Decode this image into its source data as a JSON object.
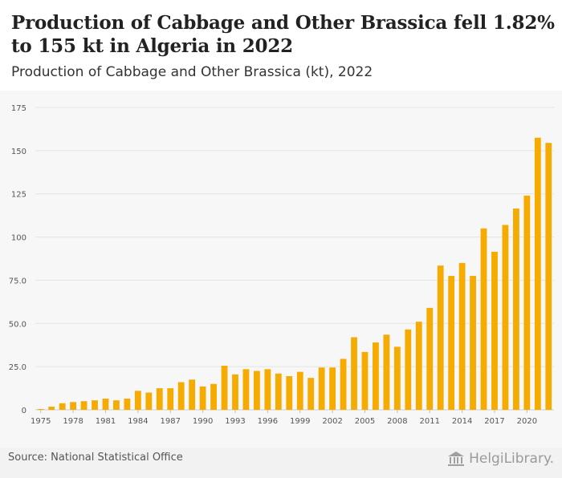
{
  "title": "Production of Cabbage and Other Brassica fell 1.82% to 155 kt in Algeria in 2022",
  "subtitle": "Production of Cabbage and Other Brassica (kt), 2022",
  "source": "Source: National Statistical Office",
  "logo_text": "HelgiLibrary.",
  "colors": {
    "bar": "#f6ab00",
    "grid": "#e3e3e3",
    "axis_text": "#555555"
  },
  "chart_data": {
    "type": "bar",
    "title": "",
    "xlabel": "",
    "ylabel": "",
    "ylim": [
      0,
      175
    ],
    "grid": true,
    "y_ticks": [
      "0",
      "25.0",
      "50.0",
      "75.0",
      "100",
      "125",
      "150",
      "175"
    ],
    "y_tick_values": [
      0,
      25,
      50,
      75,
      100,
      125,
      150,
      175
    ],
    "x_tick_labels": [
      "1975",
      "1978",
      "1981",
      "1984",
      "1987",
      "1990",
      "1993",
      "1996",
      "1999",
      "2002",
      "2005",
      "2008",
      "2011",
      "2014",
      "2017",
      "2020"
    ],
    "categories": [
      1975,
      1976,
      1977,
      1978,
      1979,
      1980,
      1981,
      1982,
      1983,
      1984,
      1985,
      1986,
      1987,
      1988,
      1989,
      1990,
      1991,
      1992,
      1993,
      1994,
      1995,
      1996,
      1997,
      1998,
      1999,
      2000,
      2001,
      2002,
      2003,
      2004,
      2005,
      2006,
      2007,
      2008,
      2009,
      2010,
      2011,
      2012,
      2013,
      2014,
      2015,
      2016,
      2017,
      2018,
      2019,
      2020,
      2021,
      2022
    ],
    "values": [
      0.5,
      1.8,
      3.8,
      4.5,
      5.0,
      5.5,
      6.5,
      5.5,
      6.5,
      11.0,
      10.0,
      12.5,
      12.5,
      16.0,
      17.5,
      13.5,
      15.0,
      25.5,
      20.5,
      23.5,
      22.5,
      23.5,
      21.0,
      19.5,
      22.0,
      18.5,
      24.5,
      24.5,
      29.5,
      42.0,
      33.5,
      39.0,
      43.5,
      36.5,
      46.5,
      51.0,
      59.0,
      83.5,
      77.5,
      85.0,
      77.5,
      105.0,
      91.5,
      107.0,
      116.5,
      124.0,
      157.5,
      154.5
    ]
  }
}
